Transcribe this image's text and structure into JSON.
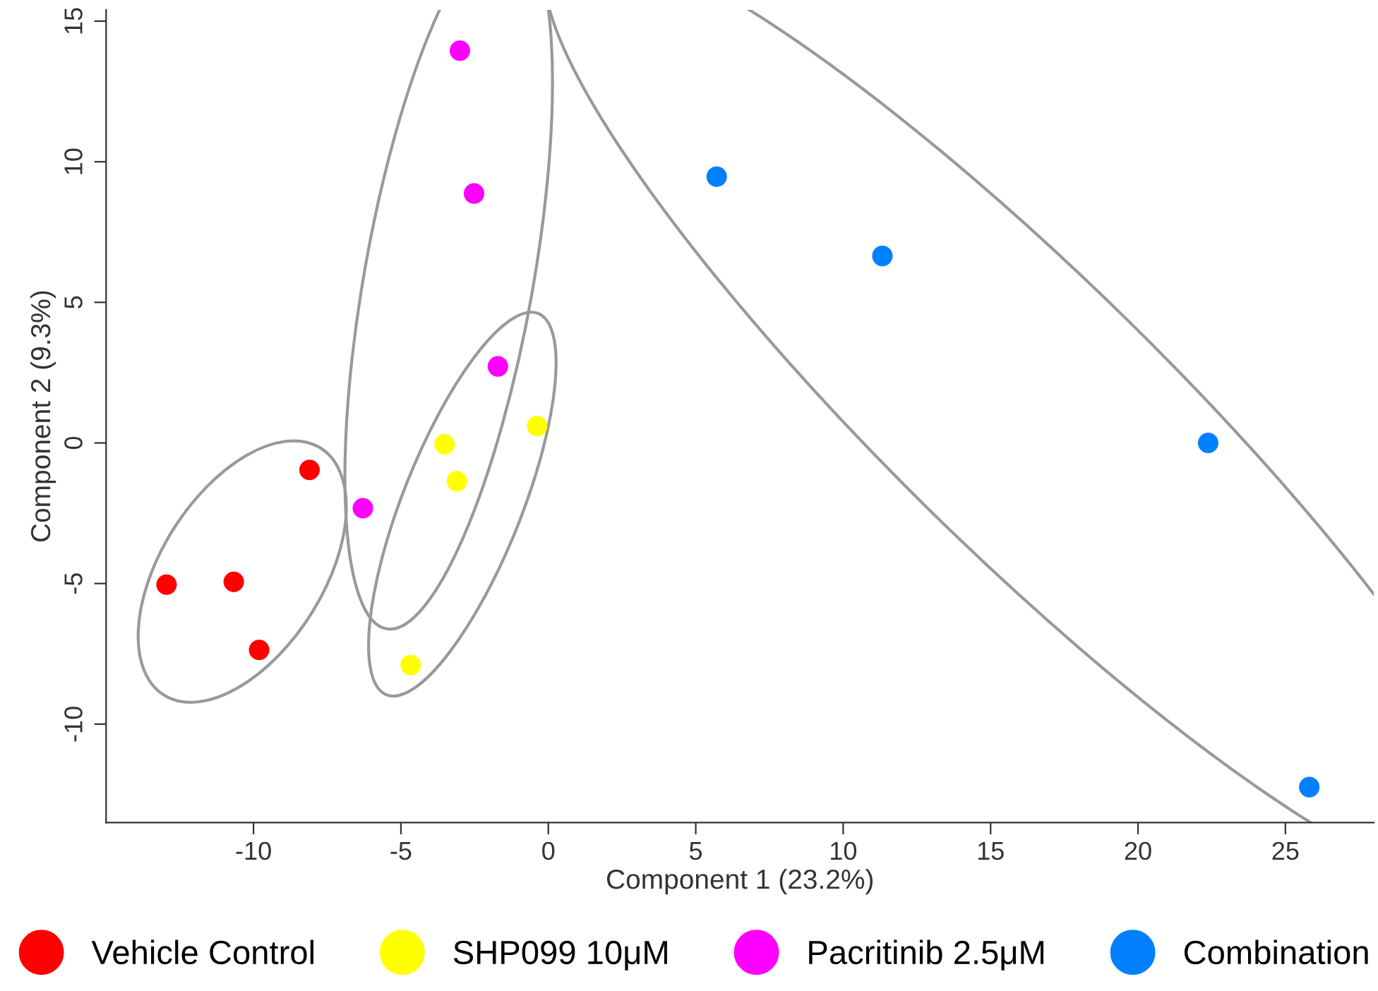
{
  "chart_data": {
    "type": "scatter",
    "xlabel": "Component 1 (23.2%)",
    "ylabel": "Component 2 (9.3%)",
    "xlim": [
      -15,
      28
    ],
    "ylim": [
      -13.5,
      15.4
    ],
    "xticks": [
      -10,
      -5,
      0,
      5,
      10,
      15,
      20,
      25
    ],
    "yticks": [
      -10,
      -5,
      0,
      5,
      10,
      15
    ],
    "grid": false,
    "legend": "bottom",
    "marker": "circle",
    "series": [
      {
        "name": "Vehicle Control",
        "color": "#ff0000",
        "x": [
          -12.95,
          -10.67,
          -9.81,
          -8.1
        ],
        "values": [
          -5.04,
          -4.94,
          -7.36,
          -0.96
        ]
      },
      {
        "name": "SHP099 10μM",
        "color": "#ffff00",
        "x": [
          -3.52,
          -3.1,
          -0.38,
          -4.67
        ],
        "values": [
          -0.05,
          -1.36,
          0.6,
          -7.9
        ]
      },
      {
        "name": "Pacritinib 2.5μM",
        "color": "#ff00ff",
        "x": [
          -3.0,
          -2.52,
          -1.71,
          -6.29
        ],
        "values": [
          13.95,
          8.87,
          2.72,
          -2.32
        ]
      },
      {
        "name": "Combination",
        "color": "#0080ff",
        "x": [
          5.71,
          11.33,
          22.38,
          25.81
        ],
        "values": [
          9.47,
          6.65,
          0.0,
          -12.24
        ]
      }
    ]
  }
}
